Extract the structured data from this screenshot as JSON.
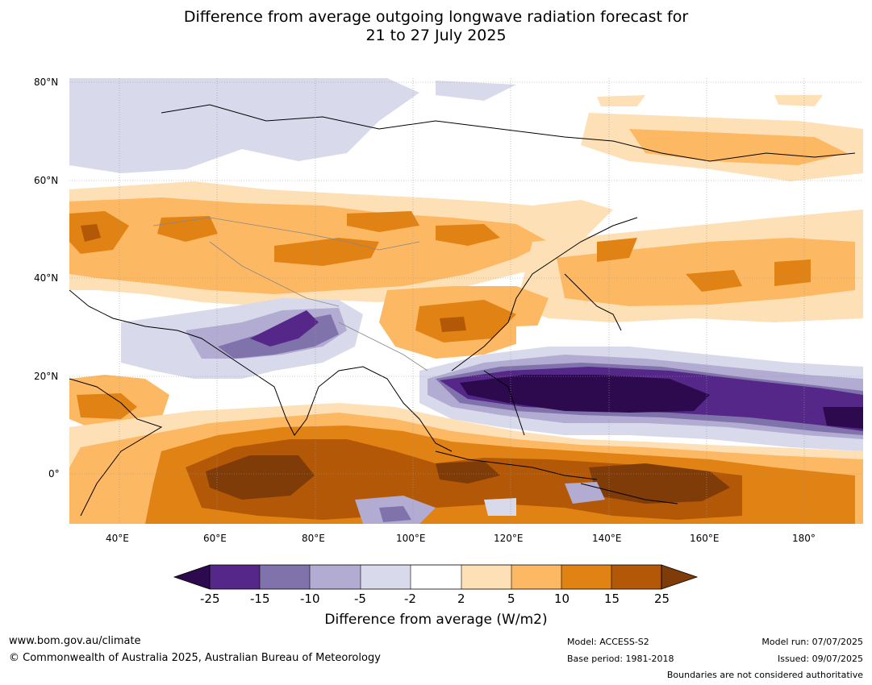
{
  "title": {
    "line1": "Difference from average outgoing longwave radiation forecast for",
    "line2": "21 to 27 July 2025"
  },
  "map": {
    "lat_labels": [
      "80°N",
      "60°N",
      "40°N",
      "20°N",
      "0°"
    ],
    "lon_labels": [
      "40°E",
      "60°E",
      "80°E",
      "100°E",
      "120°E",
      "140°E",
      "160°E",
      "180°"
    ]
  },
  "colorbar": {
    "ticks": [
      "-25",
      "-15",
      "-10",
      "-5",
      "-2",
      "2",
      "5",
      "10",
      "15",
      "25"
    ],
    "label": "Difference from average (W/m2)",
    "colors": [
      "#2d0a4e",
      "#542788",
      "#8073ac",
      "#b2abd2",
      "#d8daeb",
      "#ffffff",
      "#fee0b6",
      "#fdb863",
      "#e08214",
      "#b35806",
      "#7f3b08"
    ]
  },
  "footer": {
    "website": "www.bom.gov.au/climate",
    "copyright": "© Commonwealth of Australia 2025, Australian Bureau of Meteorology",
    "model": "Model: ACCESS-S2",
    "base_period": "Base period: 1981-2018",
    "model_run": "Model run: 07/07/2025",
    "issued": "Issued: 09/07/2025",
    "disclaimer": "Boundaries are not considered authoritative"
  }
}
